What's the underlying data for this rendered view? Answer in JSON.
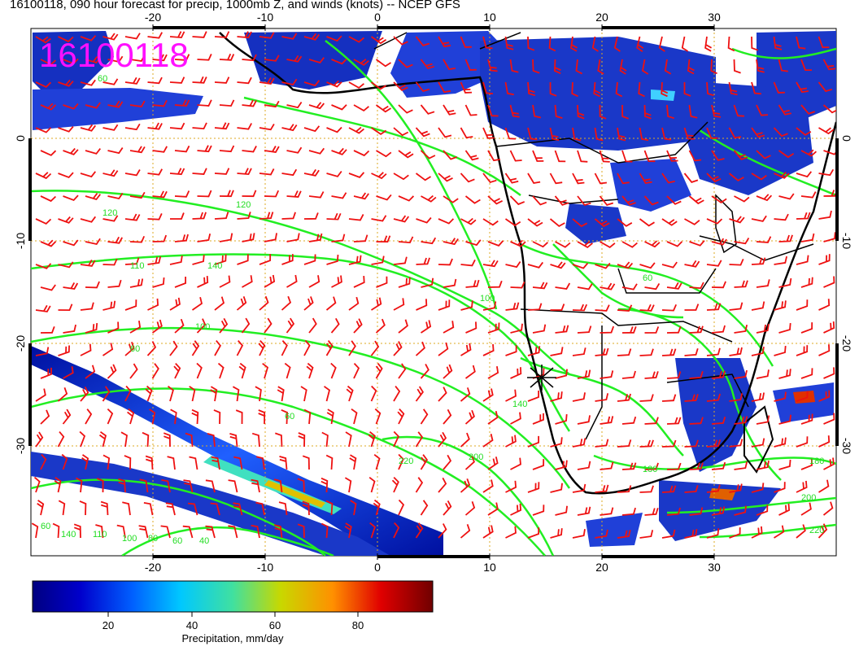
{
  "title": "16100118, 090 hour forecast for precip, 1000mb Z, and winds (knots) -- NCEP GFS",
  "stamp": "16100118",
  "lon_ticks": [
    "-20",
    "-10",
    "0",
    "10",
    "20",
    "30"
  ],
  "lat_ticks": [
    "0",
    "-10",
    "-20",
    "-30"
  ],
  "colorbar": {
    "label": "Precipitation, mm/day",
    "ticks": [
      "20",
      "40",
      "60",
      "80"
    ],
    "range": [
      0,
      100
    ]
  },
  "contour_labels": [
    "60",
    "120",
    "110",
    "140",
    "100",
    "60",
    "60",
    "120",
    "140",
    "180",
    "200",
    "220",
    "180",
    "200",
    "220",
    "60",
    "140",
    "100",
    "80",
    "60",
    "40",
    "110",
    "100",
    "60"
  ],
  "colors": {
    "contour": "#22ee22",
    "wind_barb": "#ee1111",
    "coast": "#000000",
    "grid": "#ddaa22",
    "stamp": "#ff10ff"
  }
}
